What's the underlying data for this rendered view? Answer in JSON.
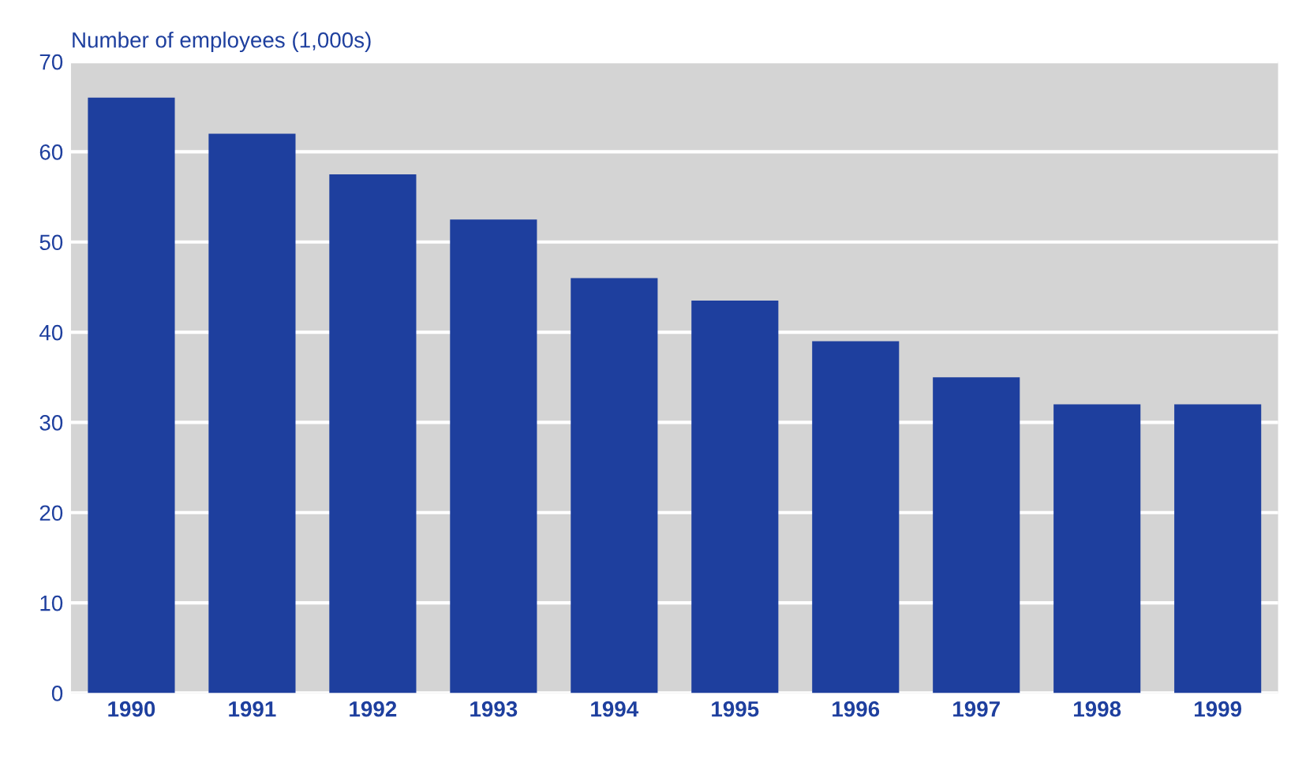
{
  "chart_data": {
    "type": "bar",
    "ylabel": "Number of employees (1,000s)",
    "categories": [
      "1990",
      "1991",
      "1992",
      "1993",
      "1994",
      "1995",
      "1996",
      "1997",
      "1998",
      "1999"
    ],
    "values": [
      66,
      62,
      57.5,
      52.5,
      46,
      43.5,
      39,
      35,
      32,
      32
    ],
    "color": "#1e3f9e",
    "ylim": [
      0,
      70
    ],
    "yticks": [
      0,
      10,
      20,
      30,
      40,
      50,
      60,
      70
    ],
    "grid": "y"
  }
}
